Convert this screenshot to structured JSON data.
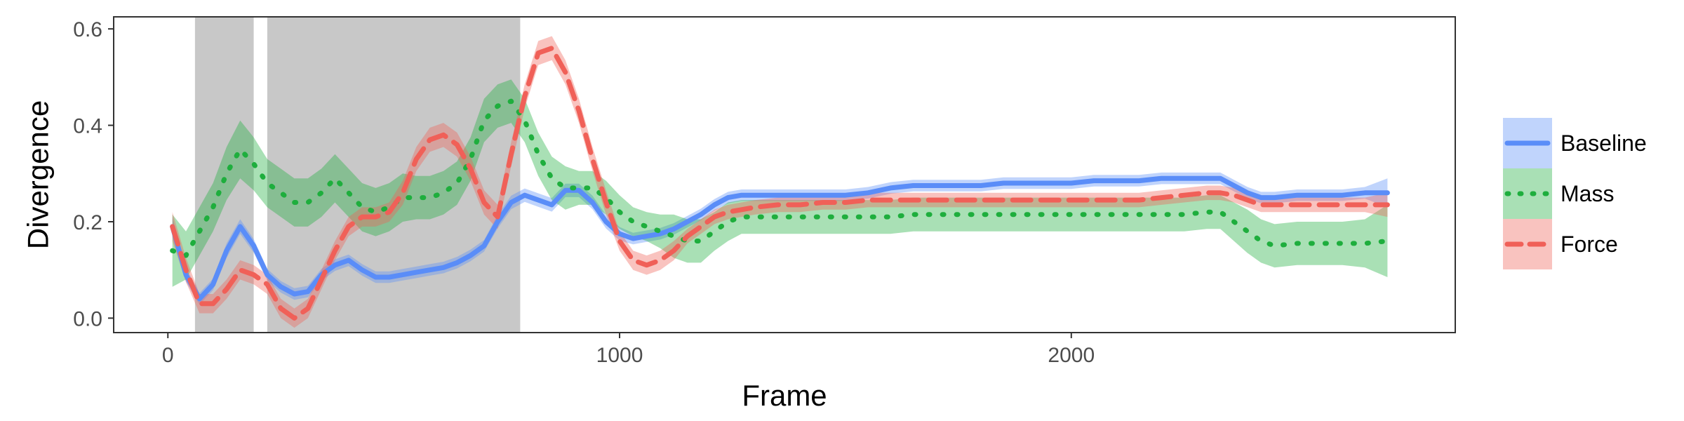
{
  "chart_data": {
    "type": "line",
    "xlabel": "Frame",
    "ylabel": "Divergence",
    "xlim": [
      -120,
      2850
    ],
    "ylim": [
      -0.03,
      0.625
    ],
    "x_ticks": [
      0,
      1000,
      2000
    ],
    "x_tick_labels": [
      "0",
      "1000",
      "2000"
    ],
    "y_ticks": [
      0.0,
      0.2,
      0.4,
      0.6
    ],
    "y_tick_labels": [
      "0.0",
      "0.2",
      "0.4",
      "0.6"
    ],
    "grid": false,
    "legend_position": "right",
    "shaded_regions": [
      [
        60,
        190
      ],
      [
        220,
        780
      ]
    ],
    "shaded_color": "#c8c8c8",
    "series": [
      {
        "name": "Baseline",
        "color": "#5a8df8",
        "dash": "solid",
        "x": [
          10,
          40,
          70,
          100,
          130,
          160,
          190,
          220,
          250,
          280,
          310,
          340,
          370,
          400,
          430,
          460,
          490,
          520,
          550,
          580,
          610,
          640,
          670,
          700,
          730,
          760,
          790,
          820,
          850,
          880,
          910,
          940,
          970,
          1000,
          1030,
          1060,
          1090,
          1120,
          1150,
          1180,
          1210,
          1240,
          1270,
          1300,
          1350,
          1400,
          1450,
          1500,
          1550,
          1600,
          1650,
          1700,
          1750,
          1800,
          1850,
          1900,
          1950,
          2000,
          2050,
          2100,
          2150,
          2200,
          2250,
          2300,
          2330,
          2360,
          2390,
          2420,
          2450,
          2500,
          2550,
          2600,
          2650,
          2700
        ],
        "y": [
          0.19,
          0.09,
          0.04,
          0.07,
          0.14,
          0.19,
          0.15,
          0.09,
          0.065,
          0.05,
          0.055,
          0.09,
          0.11,
          0.12,
          0.1,
          0.085,
          0.085,
          0.09,
          0.095,
          0.1,
          0.105,
          0.115,
          0.13,
          0.15,
          0.2,
          0.24,
          0.255,
          0.245,
          0.235,
          0.265,
          0.265,
          0.24,
          0.2,
          0.175,
          0.165,
          0.17,
          0.175,
          0.185,
          0.2,
          0.215,
          0.235,
          0.25,
          0.255,
          0.255,
          0.255,
          0.255,
          0.255,
          0.255,
          0.26,
          0.27,
          0.275,
          0.275,
          0.275,
          0.275,
          0.28,
          0.28,
          0.28,
          0.28,
          0.285,
          0.285,
          0.285,
          0.29,
          0.29,
          0.29,
          0.29,
          0.275,
          0.26,
          0.25,
          0.25,
          0.255,
          0.255,
          0.255,
          0.26,
          0.26
        ],
        "ci": [
          0.02,
          0.015,
          0.012,
          0.012,
          0.015,
          0.015,
          0.014,
          0.012,
          0.012,
          0.012,
          0.012,
          0.012,
          0.012,
          0.012,
          0.012,
          0.012,
          0.012,
          0.012,
          0.012,
          0.012,
          0.012,
          0.012,
          0.012,
          0.012,
          0.014,
          0.014,
          0.014,
          0.014,
          0.014,
          0.014,
          0.014,
          0.014,
          0.014,
          0.014,
          0.012,
          0.012,
          0.012,
          0.012,
          0.012,
          0.012,
          0.012,
          0.012,
          0.012,
          0.012,
          0.012,
          0.012,
          0.012,
          0.012,
          0.012,
          0.012,
          0.012,
          0.012,
          0.012,
          0.012,
          0.012,
          0.012,
          0.012,
          0.012,
          0.012,
          0.012,
          0.012,
          0.012,
          0.012,
          0.012,
          0.012,
          0.012,
          0.012,
          0.012,
          0.012,
          0.012,
          0.012,
          0.012,
          0.012,
          0.03
        ]
      },
      {
        "name": "Mass",
        "color": "#1eae3d",
        "dash": "dotted",
        "x": [
          10,
          40,
          70,
          100,
          130,
          160,
          190,
          220,
          250,
          280,
          310,
          340,
          370,
          400,
          430,
          460,
          490,
          520,
          550,
          580,
          610,
          640,
          670,
          700,
          730,
          760,
          790,
          820,
          850,
          880,
          910,
          940,
          970,
          1000,
          1030,
          1060,
          1090,
          1120,
          1150,
          1180,
          1210,
          1240,
          1270,
          1300,
          1350,
          1400,
          1450,
          1500,
          1550,
          1600,
          1650,
          1700,
          1750,
          1800,
          1850,
          1900,
          1950,
          2000,
          2050,
          2100,
          2150,
          2200,
          2250,
          2300,
          2330,
          2360,
          2390,
          2420,
          2450,
          2500,
          2550,
          2600,
          2650,
          2700
        ],
        "y": [
          0.14,
          0.13,
          0.18,
          0.23,
          0.3,
          0.35,
          0.32,
          0.28,
          0.26,
          0.24,
          0.24,
          0.26,
          0.29,
          0.26,
          0.23,
          0.22,
          0.23,
          0.25,
          0.25,
          0.25,
          0.26,
          0.28,
          0.33,
          0.41,
          0.44,
          0.45,
          0.41,
          0.34,
          0.29,
          0.27,
          0.27,
          0.27,
          0.25,
          0.22,
          0.2,
          0.19,
          0.18,
          0.17,
          0.16,
          0.16,
          0.18,
          0.2,
          0.21,
          0.21,
          0.21,
          0.21,
          0.21,
          0.21,
          0.21,
          0.21,
          0.215,
          0.215,
          0.215,
          0.215,
          0.215,
          0.215,
          0.215,
          0.215,
          0.215,
          0.215,
          0.215,
          0.215,
          0.215,
          0.22,
          0.22,
          0.2,
          0.18,
          0.16,
          0.15,
          0.155,
          0.155,
          0.155,
          0.155,
          0.16
        ],
        "ci": [
          0.075,
          0.05,
          0.05,
          0.05,
          0.055,
          0.06,
          0.055,
          0.05,
          0.05,
          0.05,
          0.05,
          0.05,
          0.05,
          0.05,
          0.05,
          0.05,
          0.05,
          0.05,
          0.045,
          0.045,
          0.045,
          0.045,
          0.045,
          0.045,
          0.045,
          0.045,
          0.045,
          0.045,
          0.045,
          0.045,
          0.035,
          0.035,
          0.035,
          0.035,
          0.03,
          0.03,
          0.035,
          0.045,
          0.045,
          0.045,
          0.04,
          0.04,
          0.035,
          0.035,
          0.035,
          0.035,
          0.035,
          0.035,
          0.035,
          0.035,
          0.035,
          0.035,
          0.035,
          0.035,
          0.035,
          0.035,
          0.035,
          0.035,
          0.035,
          0.035,
          0.035,
          0.035,
          0.035,
          0.035,
          0.035,
          0.04,
          0.045,
          0.045,
          0.045,
          0.045,
          0.045,
          0.045,
          0.05,
          0.075
        ]
      },
      {
        "name": "Force",
        "color": "#f06058",
        "dash": "dashed",
        "x": [
          10,
          40,
          70,
          100,
          130,
          160,
          190,
          220,
          250,
          280,
          310,
          340,
          370,
          400,
          430,
          460,
          490,
          520,
          550,
          580,
          610,
          640,
          670,
          700,
          730,
          760,
          790,
          820,
          850,
          880,
          910,
          940,
          970,
          1000,
          1030,
          1060,
          1090,
          1120,
          1150,
          1180,
          1210,
          1240,
          1270,
          1300,
          1350,
          1400,
          1450,
          1500,
          1550,
          1600,
          1650,
          1700,
          1750,
          1800,
          1850,
          1900,
          1950,
          2000,
          2050,
          2100,
          2150,
          2200,
          2250,
          2300,
          2330,
          2360,
          2390,
          2420,
          2450,
          2500,
          2550,
          2600,
          2650,
          2700
        ],
        "y": [
          0.19,
          0.1,
          0.03,
          0.03,
          0.06,
          0.1,
          0.09,
          0.07,
          0.02,
          0.0,
          0.02,
          0.08,
          0.14,
          0.19,
          0.21,
          0.21,
          0.22,
          0.26,
          0.33,
          0.37,
          0.38,
          0.36,
          0.31,
          0.24,
          0.21,
          0.34,
          0.46,
          0.55,
          0.56,
          0.51,
          0.43,
          0.33,
          0.24,
          0.16,
          0.12,
          0.11,
          0.12,
          0.14,
          0.17,
          0.19,
          0.21,
          0.22,
          0.225,
          0.23,
          0.235,
          0.235,
          0.24,
          0.24,
          0.245,
          0.245,
          0.245,
          0.245,
          0.245,
          0.245,
          0.245,
          0.245,
          0.245,
          0.245,
          0.245,
          0.245,
          0.245,
          0.25,
          0.255,
          0.26,
          0.26,
          0.255,
          0.245,
          0.235,
          0.235,
          0.235,
          0.235,
          0.235,
          0.235,
          0.235
        ],
        "ci": [
          0.03,
          0.025,
          0.02,
          0.02,
          0.02,
          0.02,
          0.02,
          0.02,
          0.02,
          0.02,
          0.02,
          0.02,
          0.02,
          0.02,
          0.02,
          0.02,
          0.02,
          0.025,
          0.025,
          0.025,
          0.025,
          0.025,
          0.025,
          0.025,
          0.025,
          0.025,
          0.025,
          0.025,
          0.025,
          0.025,
          0.025,
          0.025,
          0.025,
          0.02,
          0.02,
          0.02,
          0.02,
          0.02,
          0.015,
          0.015,
          0.015,
          0.015,
          0.015,
          0.015,
          0.015,
          0.015,
          0.015,
          0.015,
          0.015,
          0.015,
          0.015,
          0.015,
          0.015,
          0.015,
          0.015,
          0.015,
          0.015,
          0.015,
          0.015,
          0.015,
          0.015,
          0.015,
          0.015,
          0.015,
          0.015,
          0.015,
          0.015,
          0.015,
          0.015,
          0.015,
          0.015,
          0.015,
          0.015,
          0.025
        ]
      }
    ]
  }
}
